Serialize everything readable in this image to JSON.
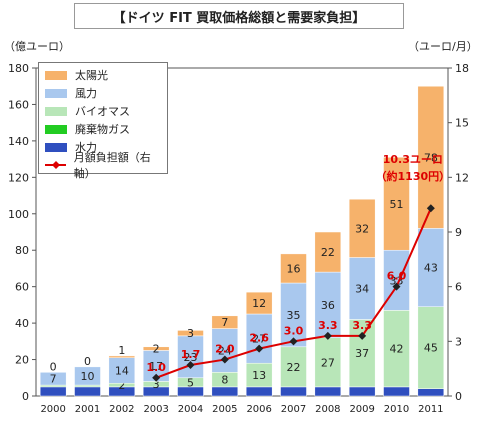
{
  "chart_data": {
    "type": "bar",
    "title": "【ドイツ FIT 買取価格総額と需要家負担】",
    "left_unit": "（億ユーロ）",
    "right_unit": "（ユーロ/月）",
    "categories": [
      "2000",
      "2001",
      "2002",
      "2003",
      "2004",
      "2005",
      "2006",
      "2007",
      "2008",
      "2009",
      "2010",
      "2011"
    ],
    "ylim": [
      0,
      180
    ],
    "yticks": [
      0,
      20,
      40,
      60,
      80,
      100,
      120,
      140,
      160,
      180
    ],
    "y2lim": [
      0,
      18
    ],
    "y2ticks": [
      0,
      3,
      6,
      9,
      12,
      15,
      18
    ],
    "stacked_series": [
      {
        "name": "水力",
        "color": "#2f4fbf",
        "values": [
          5,
          5,
          5,
          5,
          5,
          5,
          5,
          5,
          5,
          5,
          5,
          4
        ],
        "labels": [
          "",
          "",
          "",
          "",
          "",
          "",
          "",
          "",
          "",
          "",
          "",
          ""
        ]
      },
      {
        "name": "廃棄物ガス",
        "color": "#22cc22",
        "values": [
          0,
          0,
          0,
          0,
          0,
          0,
          0,
          0,
          0,
          0,
          0,
          0
        ],
        "labels": [
          "",
          "",
          "",
          "",
          "",
          "",
          "",
          "",
          "",
          "",
          "",
          ""
        ]
      },
      {
        "name": "バイオマス",
        "color": "#b8e6b8",
        "values": [
          1,
          1,
          2,
          3,
          5,
          8,
          13,
          22,
          27,
          37,
          42,
          45
        ],
        "labels": [
          "1",
          "1",
          "2",
          "3",
          "5",
          "8",
          "13",
          "22",
          "27",
          "37",
          "42",
          "45"
        ]
      },
      {
        "name": "風力",
        "color": "#a9c8ee",
        "values": [
          7,
          10,
          14,
          17,
          23,
          24,
          27,
          35,
          36,
          34,
          33,
          43
        ],
        "labels": [
          "7",
          "10",
          "14",
          "17",
          "23",
          "24",
          "27",
          "35",
          "36",
          "34",
          "33",
          "43"
        ]
      },
      {
        "name": "太陽光",
        "color": "#f6b26b",
        "values": [
          0,
          0,
          1,
          2,
          3,
          7,
          12,
          16,
          22,
          32,
          51,
          78
        ],
        "labels": [
          "0",
          "0",
          "1",
          "2",
          "3",
          "7",
          "12",
          "16",
          "22",
          "32",
          "51",
          "78"
        ]
      }
    ],
    "line_series": {
      "name": "月額負担額（右軸）",
      "color": "#dd0000",
      "points": [
        {
          "x": "2003",
          "value": 1.0,
          "label": "1.0"
        },
        {
          "x": "2004",
          "value": 1.7,
          "label": "1.7"
        },
        {
          "x": "2005",
          "value": 2.0,
          "label": "2.0"
        },
        {
          "x": "2006",
          "value": 2.6,
          "label": "2.6"
        },
        {
          "x": "2007",
          "value": 3.0,
          "label": "3.0"
        },
        {
          "x": "2008",
          "value": 3.3,
          "label": "3.3"
        },
        {
          "x": "2009",
          "value": 3.3,
          "label": "3.3"
        },
        {
          "x": "2010",
          "value": 6.0,
          "label": "6.0"
        },
        {
          "x": "2011",
          "value": 10.3,
          "label": ""
        }
      ]
    },
    "annotation": {
      "line1": "10.3ユーロ",
      "line2": "（約1130円）"
    },
    "legend": [
      {
        "name": "太陽光",
        "color": "#f6b26b",
        "kind": "bar"
      },
      {
        "name": "風力",
        "color": "#a9c8ee",
        "kind": "bar"
      },
      {
        "name": "バイオマス",
        "color": "#b8e6b8",
        "kind": "bar"
      },
      {
        "name": "廃棄物ガス",
        "color": "#22cc22",
        "kind": "bar"
      },
      {
        "name": "水力",
        "color": "#2f4fbf",
        "kind": "bar"
      },
      {
        "name": "月額負担額（右軸）",
        "color": "#dd0000",
        "kind": "line"
      }
    ],
    "legend_placement": "top-left",
    "grid": false
  }
}
